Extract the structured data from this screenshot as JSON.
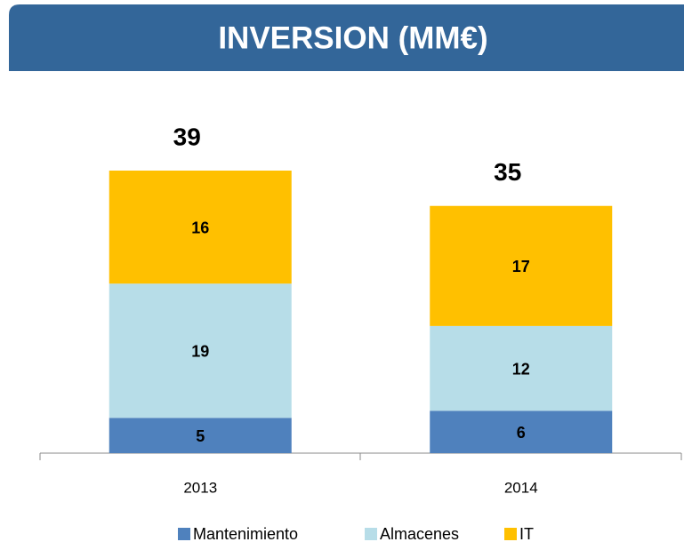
{
  "chart_data": {
    "type": "stacked-bar",
    "title": "INVERSION  (MM€)",
    "categories": [
      "2013",
      "2014"
    ],
    "series": [
      {
        "name": "Mantenimiento",
        "color": "#4f81bd",
        "values": [
          5,
          6
        ]
      },
      {
        "name": "Almacenes",
        "color": "#b7dde8",
        "values": [
          19,
          12
        ]
      },
      {
        "name": "IT",
        "color": "#ffc000",
        "values": [
          16,
          17
        ]
      }
    ],
    "totals": [
      39,
      35
    ],
    "header_color": "#336699"
  }
}
